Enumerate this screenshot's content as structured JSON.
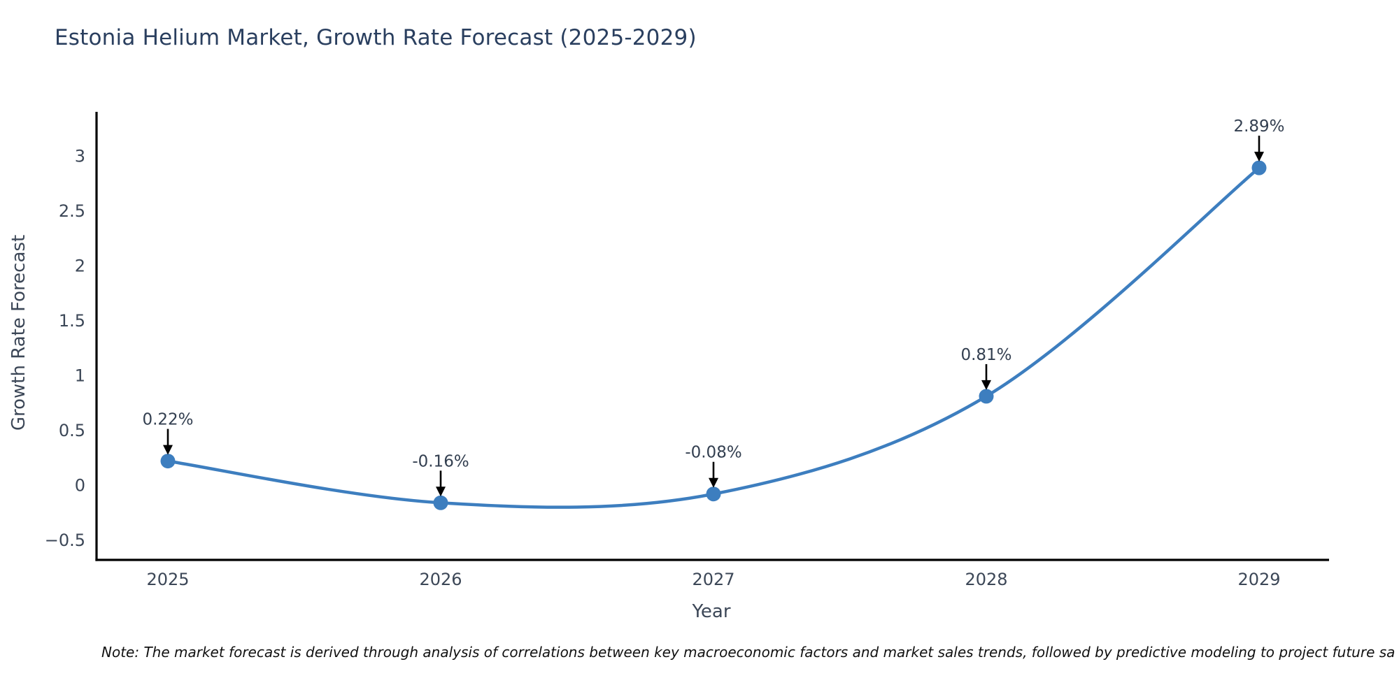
{
  "chart_data": {
    "type": "line",
    "title": "Estonia Helium Market, Growth Rate Forecast (2025-2029)",
    "xlabel": "Year",
    "ylabel": "Growth Rate Forecast",
    "x": [
      2025,
      2026,
      2027,
      2028,
      2029
    ],
    "values": [
      0.22,
      -0.16,
      -0.08,
      0.81,
      2.89
    ],
    "point_labels": [
      "0.22%",
      "-0.16%",
      "-0.08%",
      "0.81%",
      "2.89%"
    ],
    "yticks": [
      3,
      2.5,
      2,
      1.5,
      1,
      0.5,
      0,
      -0.5
    ],
    "ylim": [
      -0.68,
      3.4
    ],
    "grid": false,
    "legend": false,
    "marker": "circle",
    "annotation_arrows": true
  },
  "note": {
    "text": "Note: The market forecast is derived through analysis of correlations between key macroeconomic factors and market sales trends, followed by predictive modeling to project future sa"
  },
  "colors": {
    "title": "#2a3f5f",
    "axis_text": "#3c4757",
    "label_text": "#333f50",
    "line": "#3d7ebf",
    "marker": "#3d7ebf",
    "arrow": "#000000",
    "spine": "#000000",
    "note": "#111111"
  }
}
